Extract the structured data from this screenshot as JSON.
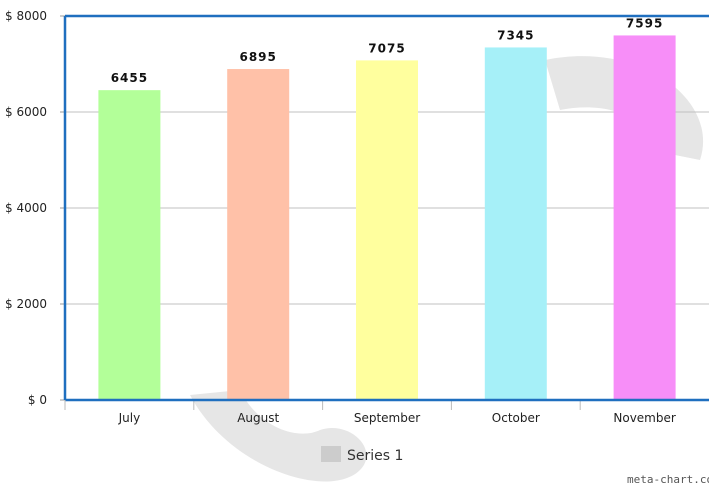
{
  "chart_data": {
    "type": "bar",
    "categories": [
      "July",
      "August",
      "September",
      "October",
      "November"
    ],
    "values": [
      6455,
      6895,
      7075,
      7345,
      7595
    ],
    "value_labels": [
      "6455",
      "6895",
      "7075",
      "7345",
      "7595"
    ],
    "series": [
      {
        "name": "Series 1",
        "values": [
          6455,
          6895,
          7075,
          7345,
          7595
        ]
      }
    ],
    "bar_colors": [
      "#b3ff99",
      "#ffc1a8",
      "#ffff9e",
      "#a6f0f8",
      "#f78ef8"
    ],
    "ylim": [
      0,
      8000
    ],
    "yticks": [
      0,
      2000,
      4000,
      6000,
      8000
    ],
    "ytick_labels": [
      "$ 0",
      "$ 2000",
      "$ 4000",
      "$ 6000",
      "$ 8000"
    ],
    "grid": true,
    "legend_position": "bottom-center",
    "title": "",
    "xlabel": "",
    "ylabel": ""
  },
  "legend": {
    "label": "Series 1",
    "swatch_color": "#cccccc"
  },
  "colors": {
    "axis": "#1f6fbf",
    "grid": "#c0c0c0",
    "watermark": "#e6e6e6"
  },
  "watermark": {
    "text": "meta-chart.cor"
  }
}
